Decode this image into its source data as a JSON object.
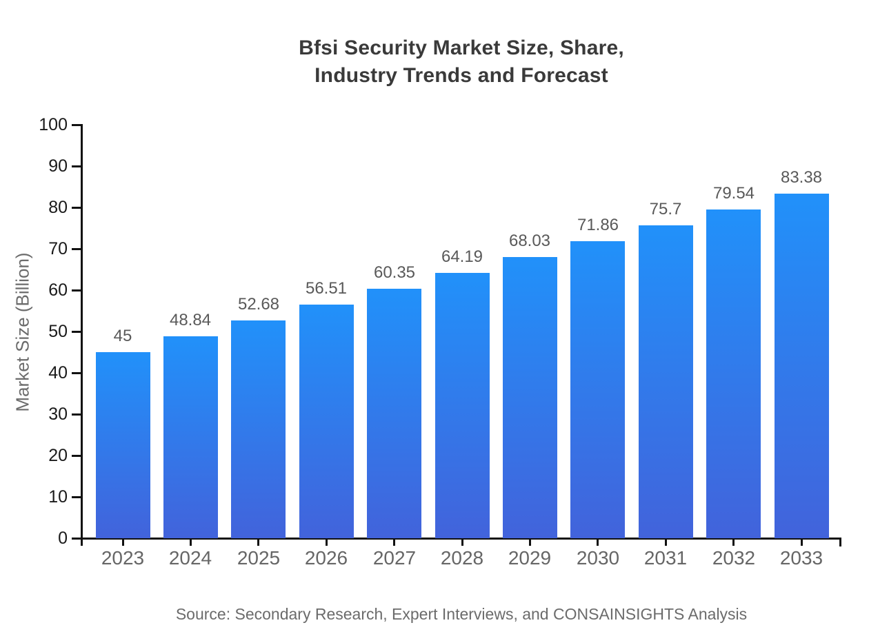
{
  "title": {
    "line1": "Bfsi Security Market Size, Share,",
    "line2": "Industry Trends and Forecast"
  },
  "y_axis_title": "Market Size (Billion)",
  "source": "Source: Secondary Research, Expert Interviews, and CONSAINSIGHTS Analysis",
  "chart_data": {
    "type": "bar",
    "title": "Bfsi Security Market Size, Share, Industry Trends and Forecast",
    "categories": [
      "2023",
      "2024",
      "2025",
      "2026",
      "2027",
      "2028",
      "2029",
      "2030",
      "2031",
      "2032",
      "2033"
    ],
    "values": [
      45,
      48.84,
      52.68,
      56.51,
      60.35,
      64.19,
      68.03,
      71.86,
      75.7,
      79.54,
      83.38
    ],
    "value_labels": [
      "45",
      "48.84",
      "52.68",
      "56.51",
      "60.35",
      "64.19",
      "68.03",
      "71.86",
      "75.7",
      "79.54",
      "83.38"
    ],
    "xlabel": "",
    "ylabel": "Market Size (Billion)",
    "ylim": [
      0,
      100
    ],
    "ytick_step": 10,
    "ytick_labels": [
      "0",
      "10",
      "20",
      "30",
      "40",
      "50",
      "60",
      "70",
      "80",
      "90",
      "100"
    ],
    "grid": false,
    "legend": false,
    "colors": {
      "bar_gradient_top": "#2191fa",
      "bar_gradient_bottom": "#4263db",
      "axis": "#111111",
      "y_tick_label": "#1a1a1a",
      "value_label": "#595959",
      "category_label": "#666666",
      "muted_text": "#6b6b6b",
      "title_text": "#3a3a3a"
    }
  }
}
